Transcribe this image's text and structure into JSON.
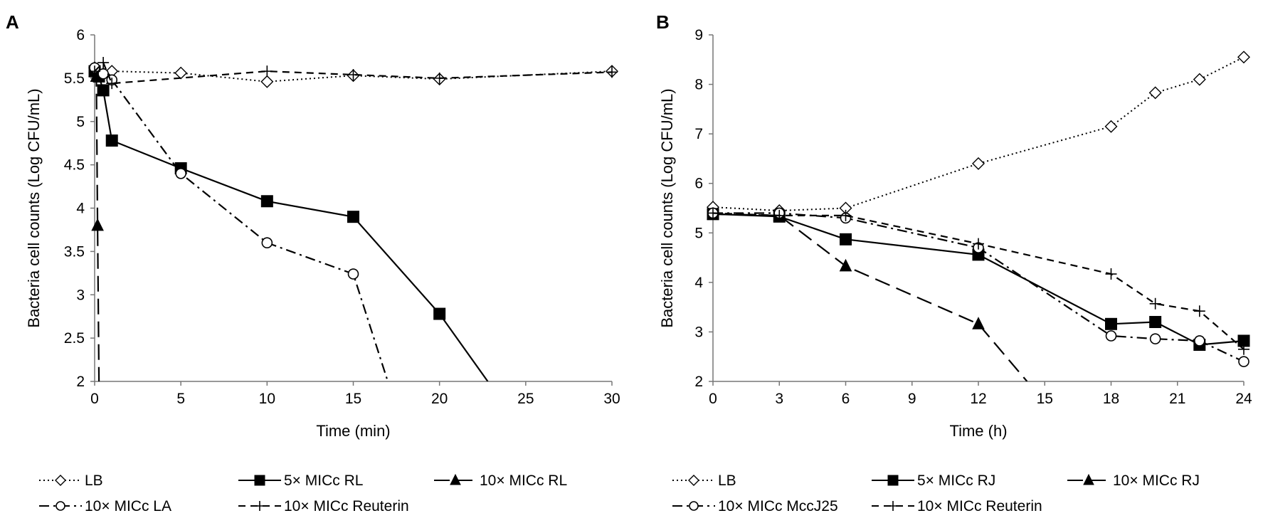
{
  "chart_data": [
    {
      "panel_label": "A",
      "type": "line",
      "xlabel": "Time (min)",
      "ylabel": "Bacteria cell counts (Log CFU/mL)",
      "xlim": [
        0,
        30
      ],
      "ylim": [
        2,
        6
      ],
      "xticks": [
        0,
        5,
        10,
        15,
        20,
        25,
        30
      ],
      "yticks": [
        2,
        2.5,
        3,
        3.5,
        4,
        4.5,
        5,
        5.5,
        6
      ],
      "series": [
        {
          "name": "LB",
          "marker": "diamond",
          "dash": "dotted",
          "x": [
            0,
            0.5,
            1,
            5,
            10,
            15,
            20,
            30
          ],
          "y": [
            5.62,
            5.55,
            5.58,
            5.56,
            5.46,
            5.53,
            5.49,
            5.58
          ]
        },
        {
          "name": "5× MICc RL",
          "marker": "square",
          "dash": "solid",
          "x": [
            0,
            0.25,
            0.5,
            1,
            5,
            10,
            15,
            20,
            22.8
          ],
          "y": [
            5.58,
            5.52,
            5.36,
            4.78,
            4.46,
            4.08,
            3.9,
            2.78,
            2.0
          ]
        },
        {
          "name": "10× MICc RL",
          "marker": "triangle",
          "dash": "longdash",
          "x": [
            0,
            0.1,
            0.17,
            0.25
          ],
          "y": [
            5.58,
            5.52,
            3.8,
            2.0
          ]
        },
        {
          "name": "10× MICc LA",
          "marker": "circle",
          "dash": "dashdot",
          "x": [
            0,
            0.5,
            1,
            5,
            10,
            15,
            17
          ],
          "y": [
            5.62,
            5.55,
            5.48,
            4.4,
            3.6,
            3.24,
            2.0
          ]
        },
        {
          "name": "10× MICc Reuterin",
          "marker": "plus",
          "dash": "dashed",
          "x": [
            0,
            0.5,
            1,
            10,
            15,
            20,
            30
          ],
          "y": [
            5.58,
            5.68,
            5.44,
            5.58,
            5.54,
            5.5,
            5.57
          ]
        }
      ]
    },
    {
      "panel_label": "B",
      "type": "line",
      "xlabel": "Time (h)",
      "ylabel": "Bacteria cell counts (Log CFU/mL)",
      "xlim": [
        0,
        24
      ],
      "ylim": [
        2,
        9
      ],
      "xticks": [
        0,
        3,
        6,
        9,
        12,
        15,
        18,
        21,
        24
      ],
      "yticks": [
        2,
        3,
        4,
        5,
        6,
        7,
        8,
        9
      ],
      "series": [
        {
          "name": "LB",
          "marker": "diamond",
          "dash": "dotted",
          "x": [
            0,
            3,
            6,
            12,
            18,
            20,
            22,
            24
          ],
          "y": [
            5.52,
            5.45,
            5.5,
            6.4,
            7.15,
            7.83,
            8.1,
            8.55
          ]
        },
        {
          "name": "5× MICc RJ",
          "marker": "square",
          "dash": "solid",
          "x": [
            0,
            3,
            6,
            12,
            18,
            20,
            22,
            24
          ],
          "y": [
            5.38,
            5.33,
            4.87,
            4.56,
            3.16,
            3.2,
            2.74,
            2.82
          ]
        },
        {
          "name": "10× MICc RJ",
          "marker": "triangle",
          "dash": "longdash",
          "x": [
            0,
            3,
            6,
            12,
            14.2
          ],
          "y": [
            5.38,
            5.35,
            4.33,
            3.16,
            2.0
          ]
        },
        {
          "name": "10× MICc MccJ25",
          "marker": "circle",
          "dash": "dashdot",
          "x": [
            0,
            3,
            6,
            12,
            18,
            20,
            22,
            24
          ],
          "y": [
            5.4,
            5.4,
            5.3,
            4.7,
            2.92,
            2.86,
            2.82,
            2.4
          ]
        },
        {
          "name": "10× MICc Reuterin",
          "marker": "plus",
          "dash": "dashed",
          "x": [
            0,
            3,
            6,
            12,
            18,
            20,
            22,
            24
          ],
          "y": [
            5.4,
            5.35,
            5.35,
            4.78,
            4.17,
            3.57,
            3.42,
            2.65
          ]
        }
      ]
    }
  ]
}
